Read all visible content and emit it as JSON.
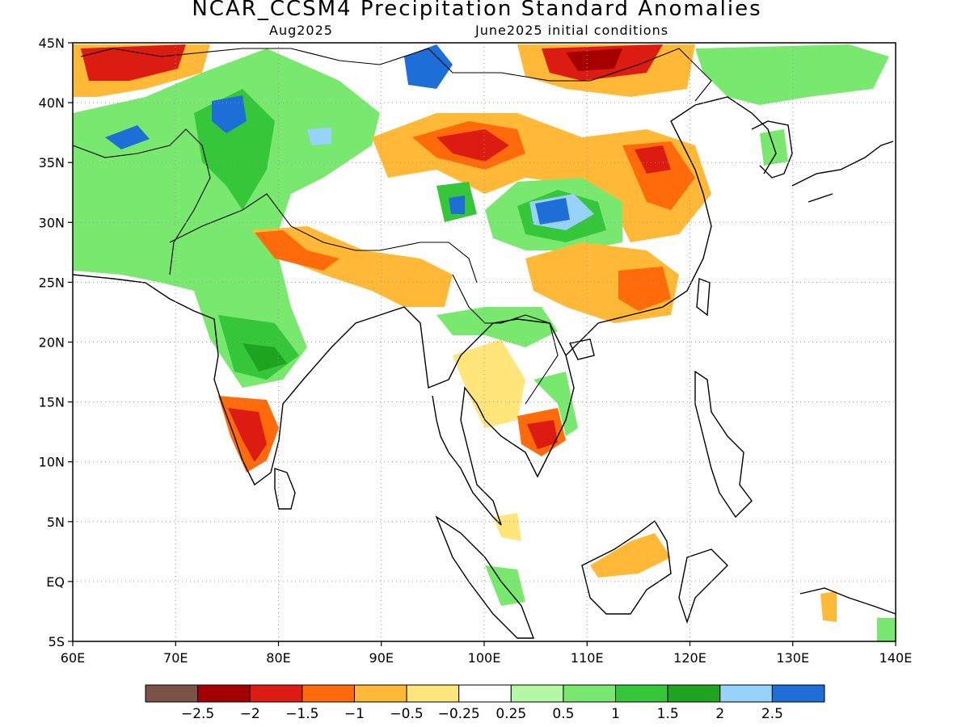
{
  "title": "NCAR_CCSM4 Precipitation Standard Anomalies",
  "subtitle_left": "Aug2025",
  "subtitle_right": "June2025 initial conditions",
  "map": {
    "lon_range": [
      60,
      140
    ],
    "lat_range": [
      -5,
      45
    ],
    "lat_ticks": [
      {
        "value": 45,
        "label": "45N"
      },
      {
        "value": 40,
        "label": "40N"
      },
      {
        "value": 35,
        "label": "35N"
      },
      {
        "value": 30,
        "label": "30N"
      },
      {
        "value": 25,
        "label": "25N"
      },
      {
        "value": 20,
        "label": "20N"
      },
      {
        "value": 15,
        "label": "15N"
      },
      {
        "value": 10,
        "label": "10N"
      },
      {
        "value": 5,
        "label": "5N"
      },
      {
        "value": 0,
        "label": "EQ"
      },
      {
        "value": -5,
        "label": "5S"
      }
    ],
    "lon_ticks": [
      {
        "value": 60,
        "label": "60E"
      },
      {
        "value": 70,
        "label": "70E"
      },
      {
        "value": 80,
        "label": "80E"
      },
      {
        "value": 90,
        "label": "90E"
      },
      {
        "value": 100,
        "label": "100E"
      },
      {
        "value": 110,
        "label": "110E"
      },
      {
        "value": 120,
        "label": "120E"
      },
      {
        "value": 130,
        "label": "130E"
      },
      {
        "value": 140,
        "label": "140E"
      }
    ]
  },
  "colorbar": {
    "colors": [
      "#7a5246",
      "#a50000",
      "#dc1c13",
      "#ff6a0a",
      "#ffb937",
      "#ffe57a",
      "#ffffff",
      "#b4f7a4",
      "#79e86f",
      "#35c63a",
      "#1ea41e",
      "#96d2fa",
      "#1e6ed7"
    ],
    "labels": [
      "-2.5",
      "-2",
      "-1.5",
      "-1",
      "-0.5",
      "-0.25",
      "0.25",
      "0.5",
      "1",
      "1.5",
      "2",
      "2.5"
    ]
  },
  "colors": {
    "land_wet": "#79e86f",
    "land_dry": "#ffb937"
  }
}
